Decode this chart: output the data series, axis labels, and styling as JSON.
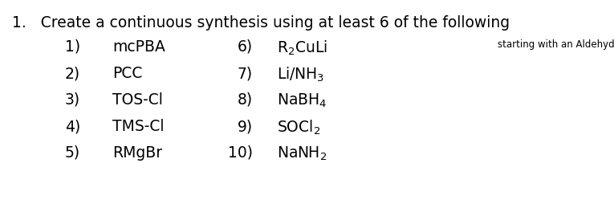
{
  "title": "1.   Create a continuous synthesis using at least 6 of the following",
  "title_fontsize": 13.5,
  "subtitle": "starting with an Aldehyde.",
  "subtitle_fontsize": 8.5,
  "left_items": [
    {
      "num": "1)  ",
      "label": "mcPBA"
    },
    {
      "num": "2)  ",
      "label": "PCC"
    },
    {
      "num": "3)  ",
      "label": "TOS-Cl"
    },
    {
      "num": "4)  ",
      "label": "TMS-Cl"
    },
    {
      "num": "5)  ",
      "label": "RMgBr"
    }
  ],
  "right_items": [
    {
      "num": "6) ",
      "main": "R",
      "sub1": "2",
      "rest": "CuLi",
      "sub2": null
    },
    {
      "num": "7) ",
      "main": "Li/NH",
      "sub1": "3",
      "rest": null,
      "sub2": null
    },
    {
      "num": "8) ",
      "main": "NaBH",
      "sub1": "4",
      "rest": null,
      "sub2": null
    },
    {
      "num": "9) ",
      "main": "SOCl",
      "sub1": "2",
      "rest": null,
      "sub2": null
    },
    {
      "num": "10) ",
      "main": "NaNH",
      "sub1": "2",
      "rest": null,
      "sub2": null
    }
  ],
  "bg_color": "#ffffff",
  "text_color": "#000000",
  "font_family": "DejaVu Sans"
}
